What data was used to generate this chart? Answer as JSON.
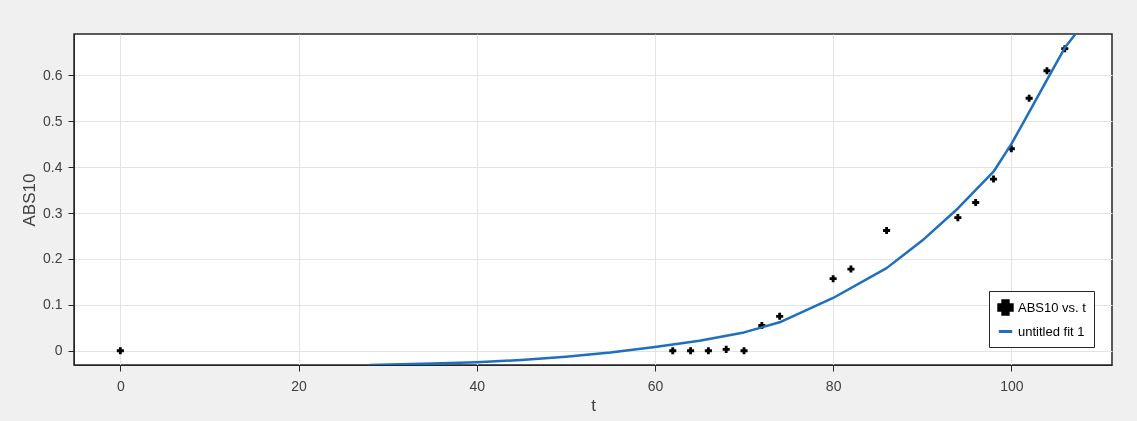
{
  "chart_data": {
    "type": "scatter",
    "xlabel": "t",
    "ylabel": "ABS10",
    "xlim": [
      -5.2,
      111.3
    ],
    "ylim": [
      -0.031,
      0.69
    ],
    "xticks": [
      0,
      20,
      40,
      60,
      80,
      100
    ],
    "yticks": [
      {
        "value": 0,
        "label": "0"
      },
      0.1,
      0.2,
      0.3,
      0.4,
      0.5,
      0.6
    ],
    "grid": true,
    "legend": "bottom right",
    "series": [
      {
        "name": "ABS10 vs. t",
        "type": "scatter",
        "marker": "cross",
        "color": "#000000",
        "x": [
          0,
          62,
          64,
          66,
          68,
          70,
          72,
          74,
          80,
          82,
          86,
          94,
          96,
          98,
          100,
          102,
          104,
          106
        ],
        "values": [
          0,
          0,
          0,
          0,
          0.003,
          0,
          0.055,
          0.075,
          0.157,
          0.178,
          0.262,
          0.29,
          0.323,
          0.374,
          0.44,
          0.55,
          0.61,
          0.658
        ]
      },
      {
        "name": "untitled fit 1",
        "type": "line",
        "marker": "none",
        "line_style": "solid",
        "color": "#1f6fbf",
        "x": [
          28,
          35,
          40,
          45,
          50,
          55,
          60,
          65,
          70,
          74,
          80,
          86,
          90,
          94,
          98,
          100,
          102,
          104,
          106,
          107.2
        ],
        "values": [
          -0.031,
          -0.028,
          -0.025,
          -0.02,
          -0.013,
          -0.004,
          0.008,
          0.022,
          0.04,
          0.062,
          0.115,
          0.18,
          0.24,
          0.31,
          0.39,
          0.45,
          0.52,
          0.59,
          0.66,
          0.69
        ]
      }
    ]
  }
}
